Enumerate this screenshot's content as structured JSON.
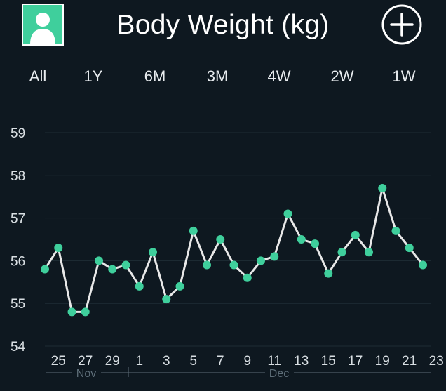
{
  "header": {
    "title": "Body Weight (kg)",
    "avatar_icon": "user-avatar-icon",
    "add_icon": "plus-circle-icon"
  },
  "tabs": [
    {
      "label": "All"
    },
    {
      "label": "1Y"
    },
    {
      "label": "6M"
    },
    {
      "label": "3M"
    },
    {
      "label": "4W"
    },
    {
      "label": "2W"
    },
    {
      "label": "1W"
    }
  ],
  "colors": {
    "background": "#0e1820",
    "accent": "#3fcf9c",
    "line": "#e8e8e8",
    "grid": "#1f2c35"
  },
  "chart_data": {
    "type": "line",
    "title": "Body Weight (kg)",
    "xlabel": "",
    "ylabel": "",
    "ylim": [
      54,
      59
    ],
    "yticks": [
      54,
      55,
      56,
      57,
      58,
      59
    ],
    "grid": true,
    "x_tick_labels": [
      "25",
      "27",
      "29",
      "1",
      "3",
      "5",
      "7",
      "9",
      "11",
      "13",
      "15",
      "17",
      "19",
      "21",
      "23"
    ],
    "month_labels": [
      "Nov",
      "Dec"
    ],
    "series": [
      {
        "x": [
          "Nov 24",
          "Nov 25",
          "Nov 26",
          "Nov 27",
          "Nov 28",
          "Nov 29",
          "Nov 30",
          "Dec 1",
          "Dec 2",
          "Dec 3",
          "Dec 4",
          "Dec 5",
          "Dec 6",
          "Dec 7",
          "Dec 8",
          "Dec 9",
          "Dec 10",
          "Dec 11",
          "Dec 12",
          "Dec 13",
          "Dec 14",
          "Dec 15",
          "Dec 16",
          "Dec 17",
          "Dec 18",
          "Dec 19",
          "Dec 20",
          "Dec 21",
          "Dec 22"
        ],
        "values": [
          55.8,
          56.3,
          54.8,
          54.8,
          56.0,
          55.8,
          55.9,
          55.4,
          56.2,
          55.1,
          55.4,
          56.7,
          55.9,
          56.5,
          55.9,
          55.6,
          56.0,
          56.1,
          57.1,
          56.5,
          56.4,
          55.7,
          56.2,
          56.6,
          56.2,
          57.7,
          56.7,
          56.3,
          55.9
        ]
      }
    ]
  }
}
